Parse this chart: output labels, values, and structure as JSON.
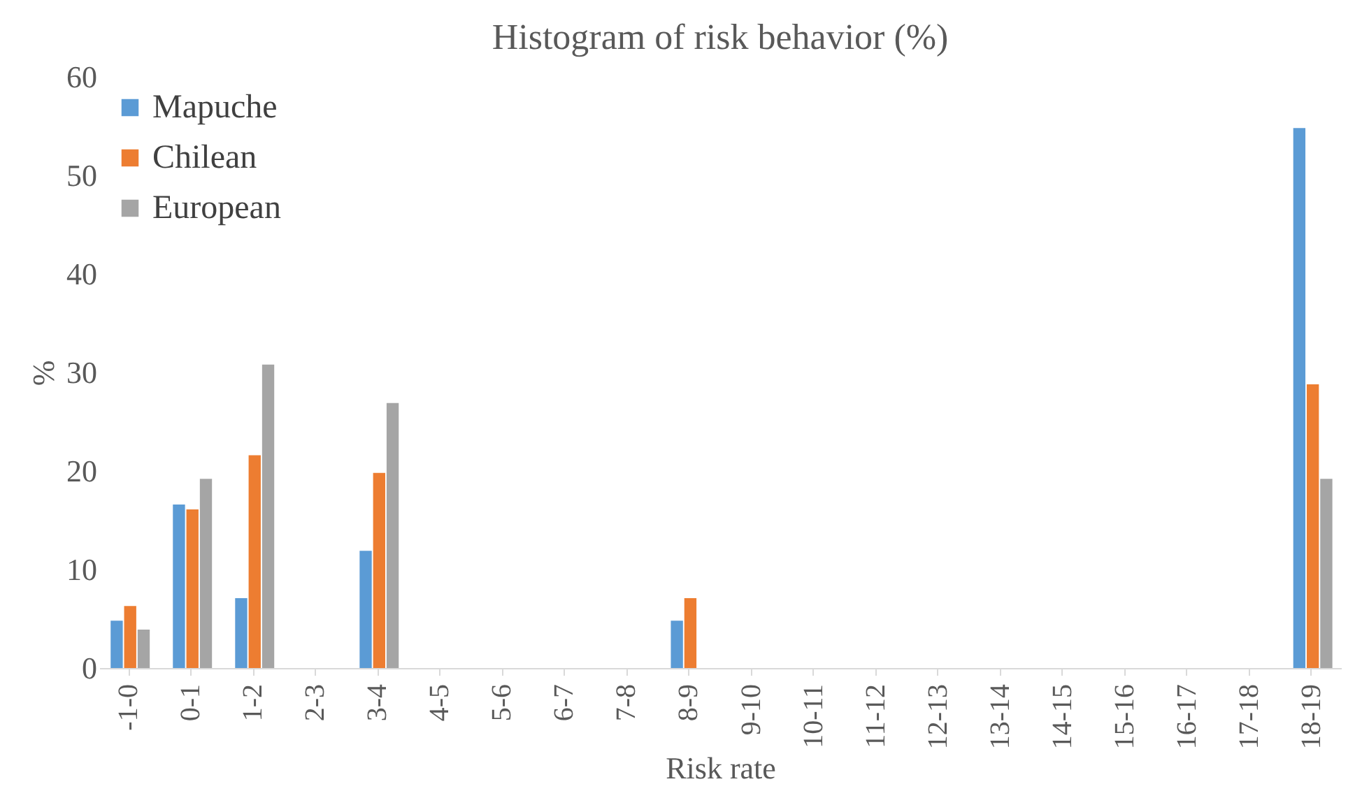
{
  "chart_data": {
    "type": "bar",
    "title": "Histogram of risk behavior (%)",
    "xlabel": "Risk rate",
    "ylabel": "%",
    "categories": [
      "-1-0",
      "0-1",
      "1-2",
      "2-3",
      "3-4",
      "4-5",
      "5-6",
      "6-7",
      "7-8",
      "8-9",
      "9-10",
      "10-11",
      "11-12",
      "12-13",
      "13-14",
      "14-15",
      "15-16",
      "16-17",
      "17-18",
      "18-19"
    ],
    "series": [
      {
        "name": "Mapuche",
        "color": "#5b9bd5",
        "values": [
          4.8,
          16.6,
          7.1,
          0,
          11.9,
          0,
          0,
          0,
          0,
          4.8,
          0,
          0,
          0,
          0,
          0,
          0,
          0,
          0,
          0,
          54.8
        ]
      },
      {
        "name": "Chilean",
        "color": "#ed7d31",
        "values": [
          6.3,
          16.1,
          21.6,
          0,
          19.8,
          0,
          0,
          0,
          0,
          7.1,
          0,
          0,
          0,
          0,
          0,
          0,
          0,
          0,
          0,
          28.8
        ]
      },
      {
        "name": "European",
        "color": "#a5a5a5",
        "values": [
          3.9,
          19.2,
          30.8,
          0,
          26.9,
          0,
          0,
          0,
          0,
          0,
          0,
          0,
          0,
          0,
          0,
          0,
          0,
          0,
          0,
          19.2
        ]
      }
    ],
    "ylim": [
      0,
      60
    ],
    "yticks": [
      0,
      10,
      20,
      30,
      40,
      50,
      60
    ],
    "grid": false,
    "legend": "top left"
  }
}
